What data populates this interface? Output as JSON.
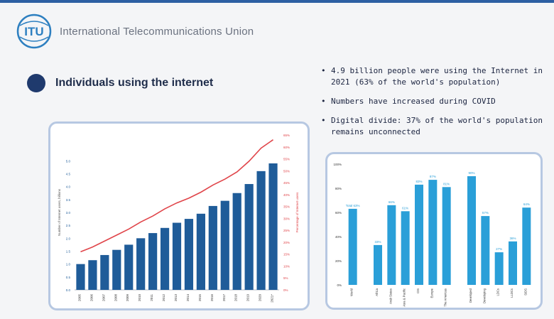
{
  "slide": {
    "org_name": "International Telecommunications Union",
    "logo_text": "ITU",
    "title": "Individuals using the internet",
    "bullets": [
      "4.9 billion people were using the Internet in 2021 (63% of the world's population)",
      "Numbers have increased during COVID",
      "Digital divide: 37% of the world's population remains unconnected"
    ],
    "colors": {
      "accent": "#1f3a6d",
      "bar_dark": "#1f5c99",
      "bar_light": "#2a9fd8",
      "line": "#e0454a",
      "card_border": "#b7c8e2"
    }
  },
  "chart_data": [
    {
      "type": "bar",
      "categories": [
        "2005",
        "2006",
        "2007",
        "2008",
        "2009",
        "2010",
        "2011",
        "2012",
        "2013",
        "2014",
        "2015",
        "2016",
        "2017",
        "2018",
        "2019",
        "2020",
        "2021*"
      ],
      "series": [
        {
          "name": "",
          "values": [
            1.0,
            1.15,
            1.35,
            1.55,
            1.75,
            2.0,
            2.2,
            2.4,
            2.6,
            2.75,
            2.95,
            3.25,
            3.45,
            3.75,
            4.1,
            4.6,
            4.9
          ]
        },
        {
          "name": "",
          "values": [
            16,
            18,
            20.5,
            23,
            25.5,
            28.5,
            31,
            34,
            36.5,
            38.5,
            41,
            44,
            46.5,
            49.5,
            54,
            59.5,
            63
          ]
        }
      ],
      "ylabel": "Number of Internet users, billions",
      "y2label": "Percentage of Internet users",
      "ylim": [
        0,
        6
      ],
      "y2lim": [
        0,
        65
      ],
      "yticks": [
        "0.0",
        "0.5",
        "1.0",
        "1.5",
        "2.0",
        "2.5",
        "3.0",
        "3.5",
        "4.0",
        "4.5",
        "5.0"
      ],
      "y2ticks": [
        "0%",
        "5%",
        "10%",
        "15%",
        "20%",
        "25%",
        "30%",
        "35%",
        "40%",
        "45%",
        "50%",
        "55%",
        "60%",
        "65%"
      ],
      "grid": false
    },
    {
      "type": "bar",
      "categories": [
        "World",
        "Africa",
        "Arab States",
        "Asia & Pacific",
        "CIS",
        "Europe",
        "The Americas",
        "Developed",
        "Developing",
        "LDCs",
        "LLDCs",
        "SIDS"
      ],
      "values": [
        63,
        33,
        66,
        61,
        83,
        87,
        81,
        90,
        57,
        27,
        36,
        64
      ],
      "data_labels": [
        "Total 63%",
        "33%",
        "66%",
        "61%",
        "83%",
        "87%",
        "81%",
        "90%",
        "57%",
        "27%",
        "36%",
        "64%"
      ],
      "ylim": [
        0,
        100
      ],
      "yticks": [
        "0%",
        "20%",
        "40%",
        "60%",
        "80%",
        "100%"
      ],
      "grid": false
    }
  ]
}
